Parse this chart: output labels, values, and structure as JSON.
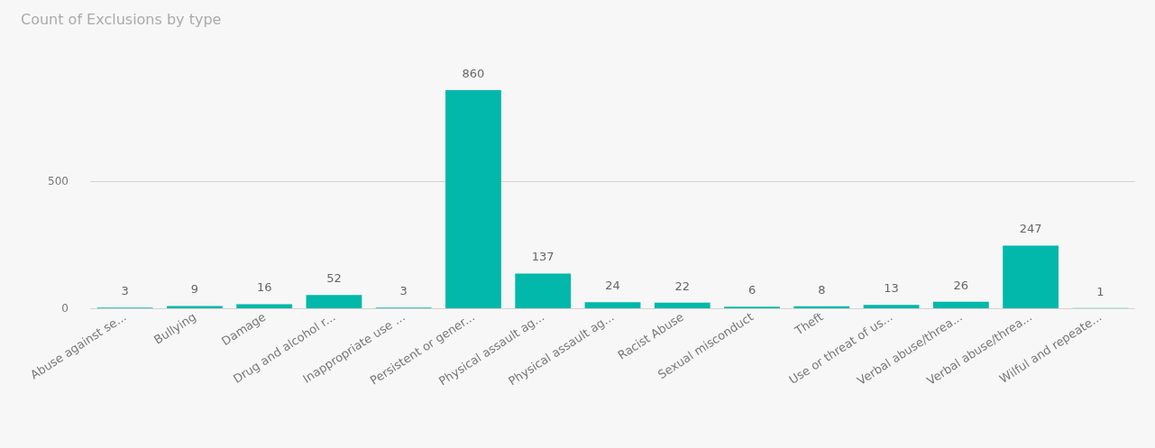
{
  "chart_data": {
    "type": "bar",
    "title": "Count of Exclusions by type",
    "categories": [
      "Abuse against se...",
      "Bullying",
      "Damage",
      "Drug and alcohol r...",
      "Inappropriate use ...",
      "Persistent or gener...",
      "Physical assault ag...",
      "Physical assault ag...",
      "Racist Abuse",
      "Sexual misconduct",
      "Theft",
      "Use or threat of us...",
      "Verbal abuse/threa...",
      "Verbal abuse/threa...",
      "Wilful and repeate..."
    ],
    "values": [
      3,
      9,
      16,
      52,
      3,
      860,
      137,
      24,
      22,
      6,
      8,
      13,
      26,
      247,
      1
    ],
    "color": "#01b8aa",
    "ylim": [
      0,
      860
    ],
    "yticks": [
      0,
      500
    ],
    "grid": "y",
    "data_labels": true
  }
}
